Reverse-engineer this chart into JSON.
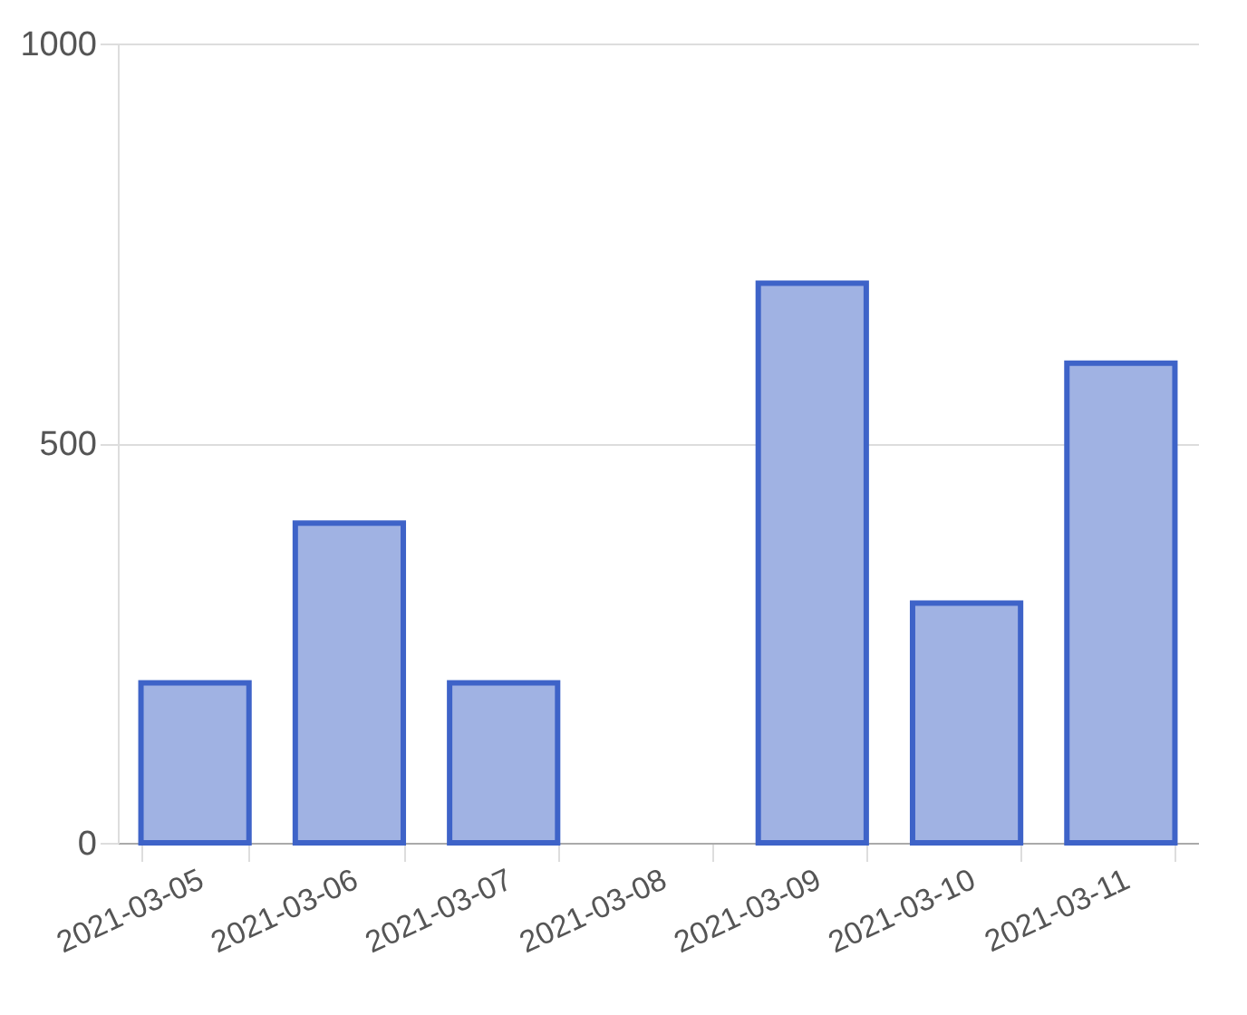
{
  "chart_data": {
    "type": "bar",
    "categories": [
      "2021-03-05",
      "2021-03-06",
      "2021-03-07",
      "2021-03-08",
      "2021-03-09",
      "2021-03-10",
      "2021-03-11"
    ],
    "values": [
      200,
      400,
      200,
      null,
      700,
      300,
      600
    ],
    "color": "#a0b2e3",
    "ylim": [
      0,
      1000
    ],
    "yticks": [
      0,
      500,
      1000
    ],
    "grid": "y"
  }
}
